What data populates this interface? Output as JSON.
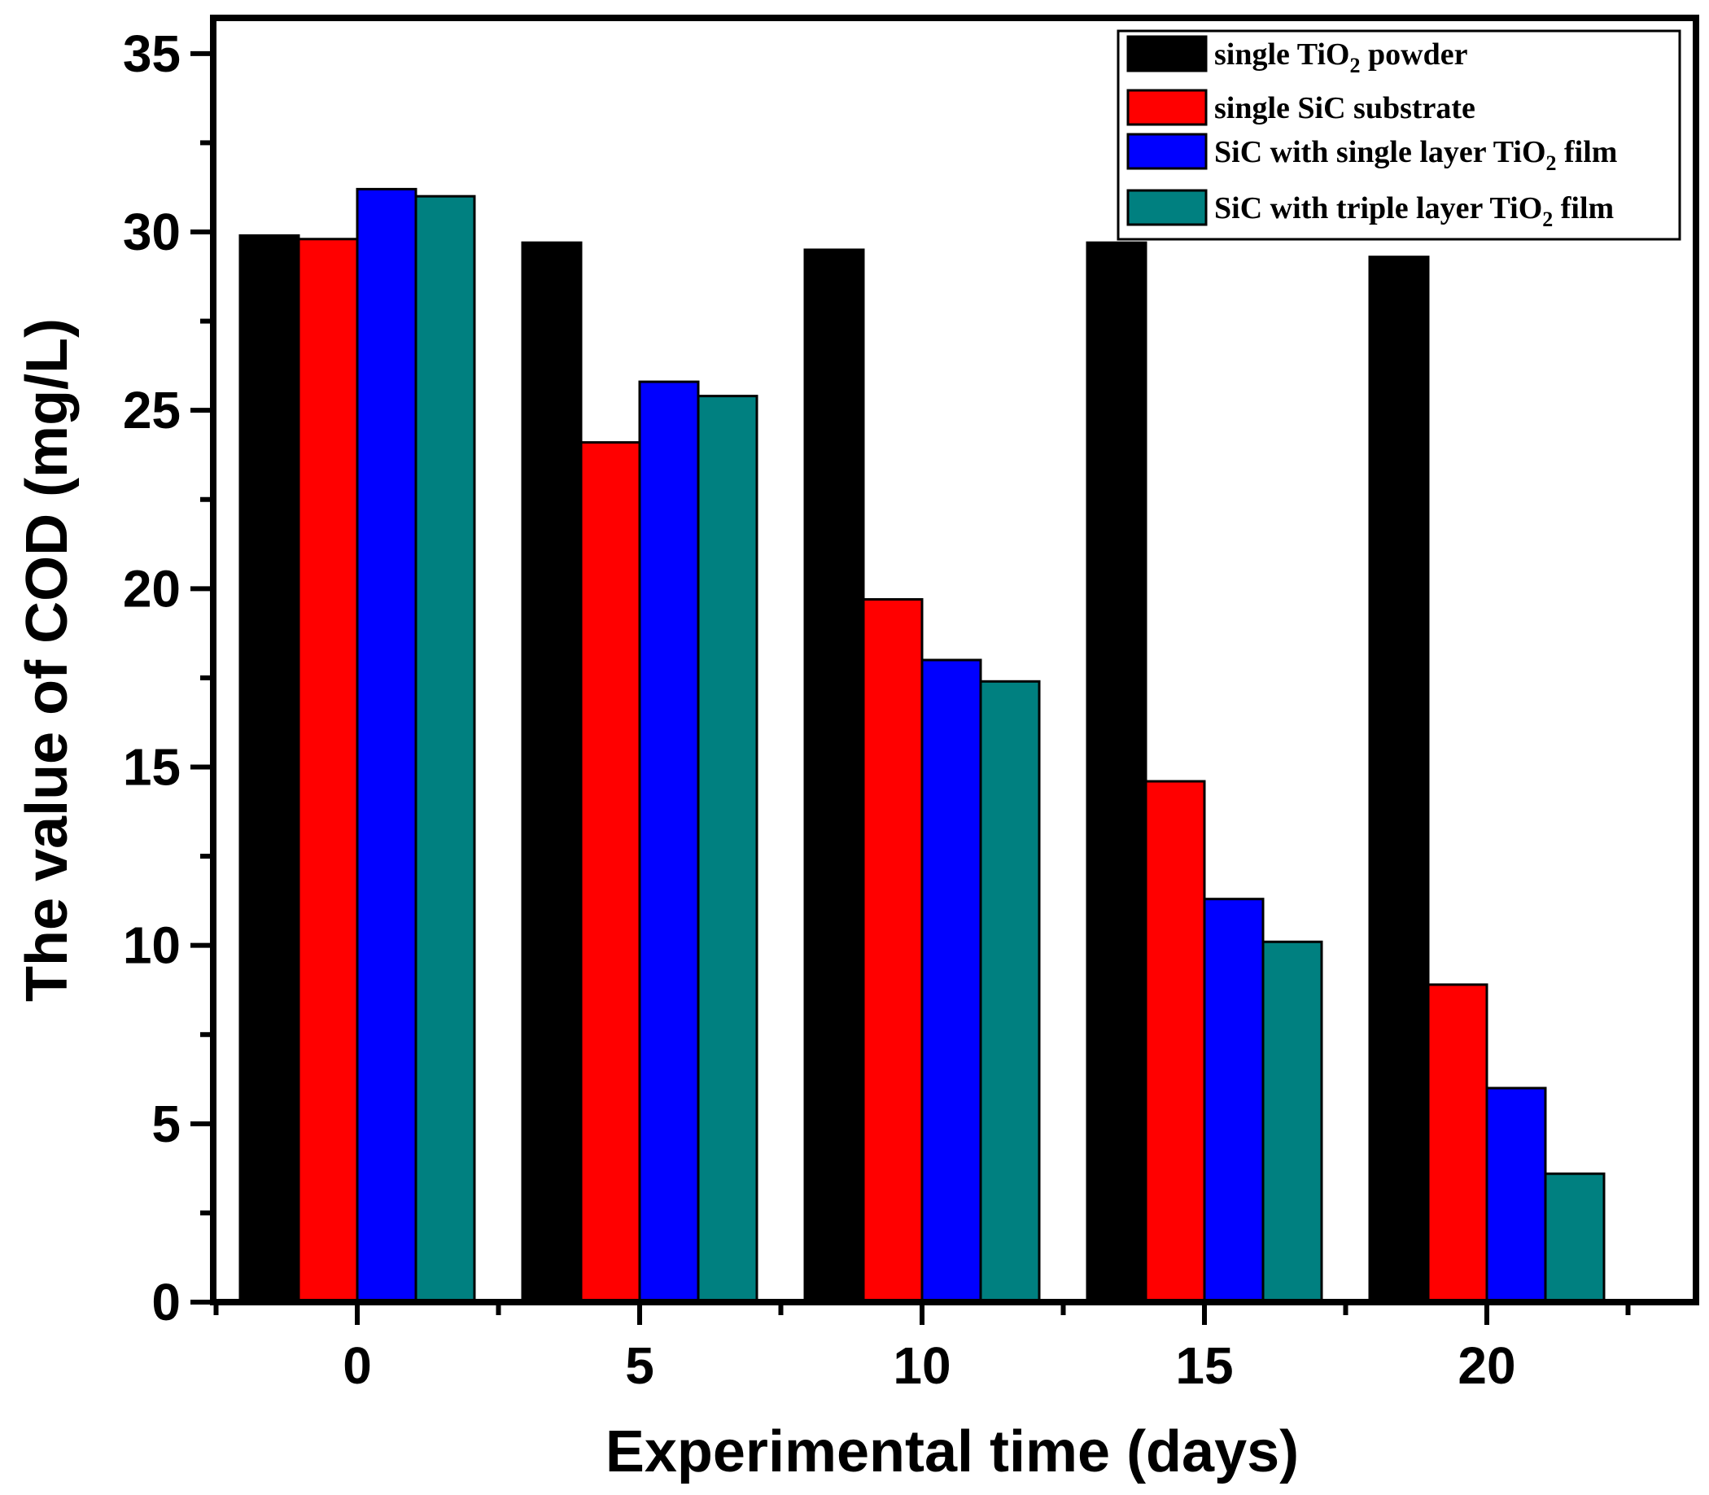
{
  "chart_data": {
    "type": "bar",
    "title": "",
    "xlabel": "Experimental time (days)",
    "ylabel": "The value of COD (mg/L)",
    "categories": [
      "0",
      "5",
      "10",
      "15",
      "20"
    ],
    "ylim": [
      0,
      36
    ],
    "yticks": [
      0,
      5,
      10,
      15,
      20,
      25,
      30,
      35
    ],
    "ytick_labels": [
      "0",
      "5",
      "10",
      "15",
      "20",
      "25",
      "30",
      "35"
    ],
    "grid": false,
    "legend_position": "top-right",
    "series": [
      {
        "name": "single TiO2 powder",
        "label_main": "single TiO",
        "label_sub": "2",
        "label_tail": " powder",
        "color": "#000000",
        "values": [
          29.9,
          29.7,
          29.5,
          29.7,
          29.3
        ]
      },
      {
        "name": "single SiC substrate",
        "label_main": "single SiC substrate",
        "label_sub": "",
        "label_tail": "",
        "color": "#ff0000",
        "values": [
          29.8,
          24.1,
          19.7,
          14.6,
          8.9
        ]
      },
      {
        "name": "SiC with single layer TiO2 film",
        "label_main": "SiC with single layer TiO",
        "label_sub": "2",
        "label_tail": " film",
        "color": "#0000ff",
        "values": [
          31.2,
          25.8,
          18.0,
          11.3,
          6.0
        ]
      },
      {
        "name": "SiC with triple layer TiO2 film",
        "label_main": "SiC with triple layer TiO",
        "label_sub": "2",
        "label_tail": " film",
        "color": "#008080",
        "values": [
          31.0,
          25.4,
          17.4,
          10.1,
          3.6
        ]
      }
    ]
  }
}
